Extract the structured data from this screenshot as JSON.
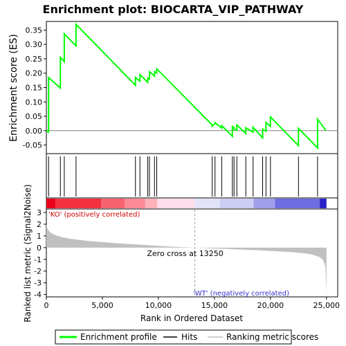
{
  "chart_data": {
    "type": "line",
    "title": "Enrichment plot: BIOCARTA_VIP_PATHWAY",
    "xlabel": "Rank in Ordered Dataset",
    "ylabel_top": "Enrichment score (ES)",
    "ylabel_bottom": "Ranked list metric (Signal2Noise)",
    "x_range": [
      0,
      26000
    ],
    "es_ylim": [
      -0.08,
      0.38
    ],
    "metric_ylim": [
      -4.2,
      3.3
    ],
    "x_ticks": [
      {
        "value": 0,
        "label": "0"
      },
      {
        "value": 5000,
        "label": "5,000"
      },
      {
        "value": 10000,
        "label": "10,000"
      },
      {
        "value": 15000,
        "label": "15,000"
      },
      {
        "value": 20000,
        "label": "20,000"
      },
      {
        "value": 25000,
        "label": "25,000"
      }
    ],
    "es_ticks": [
      {
        "value": -0.05,
        "label": "-0.05"
      },
      {
        "value": 0.0,
        "label": "0.00"
      },
      {
        "value": 0.05,
        "label": "0.05"
      },
      {
        "value": 0.1,
        "label": "0.10"
      },
      {
        "value": 0.15,
        "label": "0.15"
      },
      {
        "value": 0.2,
        "label": "0.20"
      },
      {
        "value": 0.25,
        "label": "0.25"
      },
      {
        "value": 0.3,
        "label": "0.30"
      },
      {
        "value": 0.35,
        "label": "0.35"
      }
    ],
    "metric_ticks": [
      {
        "value": 3,
        "label": "3"
      },
      {
        "value": 2,
        "label": "2"
      },
      {
        "value": 1,
        "label": "1"
      },
      {
        "value": 0,
        "label": "0"
      },
      {
        "value": -1,
        "label": "-1"
      },
      {
        "value": -2,
        "label": "-2"
      },
      {
        "value": -3,
        "label": "-3"
      },
      {
        "value": -4,
        "label": "-4"
      }
    ],
    "enrichment_profile": {
      "name": "Enrichment profile",
      "color": "#00ff00",
      "x": [
        0,
        200,
        200,
        1250,
        1250,
        1600,
        1600,
        2650,
        2650,
        7950,
        7950,
        8350,
        8350,
        9050,
        9050,
        9200,
        9200,
        9650,
        9650,
        9850,
        9850,
        14800,
        14800,
        15050,
        15050,
        15650,
        15650,
        16600,
        16600,
        16750,
        16750,
        17000,
        17000,
        17800,
        17800,
        18450,
        18450,
        19300,
        19300,
        19600,
        19600,
        20000,
        20000,
        22500,
        22500,
        24200,
        24200,
        24950
      ],
      "y": [
        0.0,
        -0.005,
        0.185,
        0.148,
        0.255,
        0.24,
        0.337,
        0.295,
        0.37,
        0.158,
        0.185,
        0.172,
        0.195,
        0.168,
        0.183,
        0.18,
        0.205,
        0.19,
        0.205,
        0.2,
        0.215,
        0.02,
        0.015,
        0.025,
        0.028,
        0.009,
        0.018,
        -0.02,
        0.015,
        0.011,
        0.005,
        0.001,
        0.02,
        -0.01,
        0.01,
        -0.005,
        0.012,
        -0.025,
        0.005,
        -0.002,
        0.028,
        0.015,
        0.048,
        -0.052,
        0.008,
        -0.06,
        0.04,
        0.0
      ]
    },
    "hits": {
      "name": "Hits",
      "x": [
        200,
        1250,
        1600,
        2650,
        7950,
        8350,
        9050,
        9200,
        9650,
        9850,
        14800,
        15050,
        15650,
        16600,
        16750,
        17000,
        17800,
        18450,
        19300,
        19600,
        20000,
        22500,
        24200
      ]
    },
    "ranking_metric": {
      "name": "Ranking metric scores",
      "x": [
        0,
        100,
        300,
        600,
        1000,
        1500,
        2000,
        3000,
        4000,
        5000,
        6000,
        7000,
        8000,
        9000,
        10000,
        11000,
        12000,
        13250,
        14000,
        15000,
        16000,
        17000,
        18000,
        19000,
        20000,
        21000,
        22000,
        23000,
        23500,
        24000,
        24400,
        24700,
        24900,
        25000
      ],
      "y": [
        2.0,
        1.6,
        1.35,
        1.15,
        1.0,
        0.88,
        0.78,
        0.65,
        0.55,
        0.47,
        0.4,
        0.33,
        0.27,
        0.21,
        0.15,
        0.1,
        0.05,
        0.0,
        -0.03,
        -0.07,
        -0.11,
        -0.15,
        -0.19,
        -0.23,
        -0.28,
        -0.33,
        -0.39,
        -0.48,
        -0.55,
        -0.66,
        -0.82,
        -1.05,
        -1.6,
        -3.9
      ]
    },
    "zero_cross": {
      "x": 13250,
      "label": "Zero cross at 13250"
    },
    "pos_label": "'KO' (positively correlated)",
    "neg_label": "'WT' (negatively correlated)",
    "heat_bar": {
      "segments": [
        {
          "x0": 0,
          "x1": 800,
          "color": "#e8001c"
        },
        {
          "x0": 800,
          "x1": 4900,
          "color": "#f2323f"
        },
        {
          "x0": 4900,
          "x1": 7000,
          "color": "#f76270"
        },
        {
          "x0": 7000,
          "x1": 8800,
          "color": "#fa8a94"
        },
        {
          "x0": 8800,
          "x1": 9900,
          "color": "#fcb2b8"
        },
        {
          "x0": 9900,
          "x1": 13250,
          "color": "#fddcec"
        },
        {
          "x0": 13250,
          "x1": 15500,
          "color": "#e2e2f8"
        },
        {
          "x0": 15500,
          "x1": 18500,
          "color": "#cccdf3"
        },
        {
          "x0": 18500,
          "x1": 20400,
          "color": "#9f9fec"
        },
        {
          "x0": 20400,
          "x1": 24400,
          "color": "#6e6de2"
        },
        {
          "x0": 24400,
          "x1": 25000,
          "color": "#2a22c8"
        }
      ]
    },
    "legend": [
      {
        "label": "Enrichment profile",
        "color": "#00ff00",
        "kind": "thick-line"
      },
      {
        "label": "Hits",
        "color": "#000000",
        "kind": "line"
      },
      {
        "label": "Ranking metric scores",
        "color": "#c0c0c0",
        "kind": "line"
      }
    ],
    "grid": false,
    "legend_position": "bottom"
  }
}
